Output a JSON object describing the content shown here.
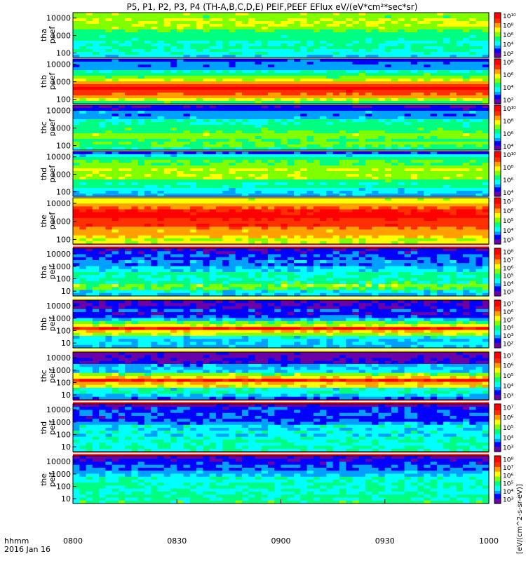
{
  "title": "P5, P1, P2, P3, P4 (TH-A,B,C,D,E) PEIF,PEEF EFlux eV/(eV*cm²*sec*sr)",
  "time_axis": {
    "row1": "hhmm",
    "row2": "2016 Jan 16",
    "ticks": [
      "0800",
      "0830",
      "0900",
      "0930",
      "1000"
    ],
    "range": [
      "0800",
      "1000"
    ]
  },
  "colorbar_units": "eV/(cm^2-s-sr-eV)",
  "colorbar_units_full": "[eV/(cm^2-s-sr-eV)]",
  "colors": {
    "colormap": [
      "#6a00a8",
      "#0000ff",
      "#00a0ff",
      "#00ffff",
      "#00ff80",
      "#80ff00",
      "#ffff00",
      "#ffa000",
      "#ff3000",
      "#ff0000"
    ],
    "fill_band_red": "#ff0000",
    "fill_band_white": "#ffffff",
    "fill_band_yellow": "#ffff00"
  },
  "chart_data": [
    {
      "type": "heatmap",
      "label": "tha\npeef",
      "label_lines": [
        "tha",
        "peef"
      ],
      "y_ticks": [
        "10000",
        "1000",
        "100"
      ],
      "cbar_ticks": [
        "10¹⁰",
        "10⁸",
        "10⁶",
        "10⁴",
        "10²"
      ],
      "level_profile": [
        0.55,
        0.6,
        0.55,
        0.45,
        0.35,
        0.45,
        0.3
      ],
      "noise": 0.1
    },
    {
      "type": "heatmap",
      "label": "thb\npeef",
      "label_lines": [
        "thb",
        "peef"
      ],
      "y_ticks": [
        "10000",
        "1000",
        "100"
      ],
      "cbar_ticks": [
        "10⁸",
        "10⁶",
        "10⁴",
        "10²"
      ],
      "level_profile": [
        0.2,
        0.25,
        0.45,
        0.7,
        0.95,
        0.8,
        0.5
      ],
      "noise": 0.08
    },
    {
      "type": "heatmap",
      "label": "thc\npeef",
      "label_lines": [
        "thc",
        "peef"
      ],
      "y_ticks": [
        "10000",
        "1000",
        "100"
      ],
      "cbar_ticks": [
        "10¹⁰",
        "10⁸",
        "10⁶",
        "10⁴"
      ],
      "level_profile": [
        0.1,
        0.25,
        0.35,
        0.45,
        0.55,
        0.5,
        0.45
      ],
      "noise": 0.1
    },
    {
      "type": "heatmap",
      "label": "thd\npeef",
      "label_lines": [
        "thd",
        "peef"
      ],
      "y_ticks": [
        "10000",
        "1000",
        "100"
      ],
      "cbar_ticks": [
        "10¹⁰",
        "10⁸",
        "10⁶",
        "10⁴"
      ],
      "level_profile": [
        0.2,
        0.45,
        0.55,
        0.6,
        0.5,
        0.4,
        0.3
      ],
      "noise": 0.09
    },
    {
      "type": "heatmap",
      "label": "the\npeef",
      "label_lines": [
        "the",
        "peef"
      ],
      "y_ticks": [
        "10000",
        "1000",
        "100"
      ],
      "cbar_ticks": [
        "10⁷",
        "10⁶",
        "10⁵",
        "10⁴",
        "10³"
      ],
      "level_profile": [
        0.6,
        0.8,
        0.95,
        0.9,
        0.8,
        0.7,
        0.6
      ],
      "noise": 0.08
    },
    {
      "type": "heatmap",
      "label": "tha\npeif",
      "label_lines": [
        "tha",
        "peif"
      ],
      "y_ticks": [
        "10000",
        "1000",
        "100",
        "10"
      ],
      "cbar_ticks": [
        "10⁸",
        "10⁷",
        "10⁶",
        "10⁵",
        "10⁴",
        "10³"
      ],
      "level_profile": [
        0.1,
        0.2,
        0.3,
        0.4,
        0.5,
        0.35
      ],
      "noise": 0.14
    },
    {
      "type": "heatmap",
      "label": "thb\npeif",
      "label_lines": [
        "thb",
        "peif"
      ],
      "y_ticks": [
        "10000",
        "1000",
        "100",
        "10"
      ],
      "cbar_ticks": [
        "10⁷",
        "10⁶",
        "10⁵",
        "10⁴",
        "10³",
        "10²"
      ],
      "level_profile": [
        0.1,
        0.15,
        0.25,
        0.9,
        0.35,
        0.3
      ],
      "noise": 0.12
    },
    {
      "type": "heatmap",
      "label": "thc\npeif",
      "label_lines": [
        "thc",
        "peif"
      ],
      "y_ticks": [
        "10000",
        "1000",
        "100",
        "10"
      ],
      "cbar_ticks": [
        "10⁷",
        "10⁶",
        "10⁵",
        "10⁴",
        "10³"
      ],
      "level_profile": [
        0.05,
        0.15,
        0.3,
        0.95,
        0.4,
        0.2
      ],
      "noise": 0.14
    },
    {
      "type": "heatmap",
      "label": "thd\npeif",
      "label_lines": [
        "thd",
        "peif"
      ],
      "y_ticks": [
        "10000",
        "1000",
        "100",
        "10"
      ],
      "cbar_ticks": [
        "10⁷",
        "10⁶",
        "10⁵",
        "10⁴",
        "10³"
      ],
      "level_profile": [
        0.1,
        0.15,
        0.25,
        0.35,
        0.45,
        0.4
      ],
      "noise": 0.14
    },
    {
      "type": "heatmap",
      "label": "the\npeif",
      "label_lines": [
        "the",
        "peif"
      ],
      "y_ticks": [
        "10000",
        "1000",
        "100",
        "10"
      ],
      "cbar_ticks": [
        "10⁸",
        "10⁷",
        "10⁶",
        "10⁵",
        "10⁴",
        "10³"
      ],
      "level_profile": [
        0.1,
        0.2,
        0.3,
        0.4,
        0.45,
        0.4
      ],
      "noise": 0.12
    }
  ]
}
